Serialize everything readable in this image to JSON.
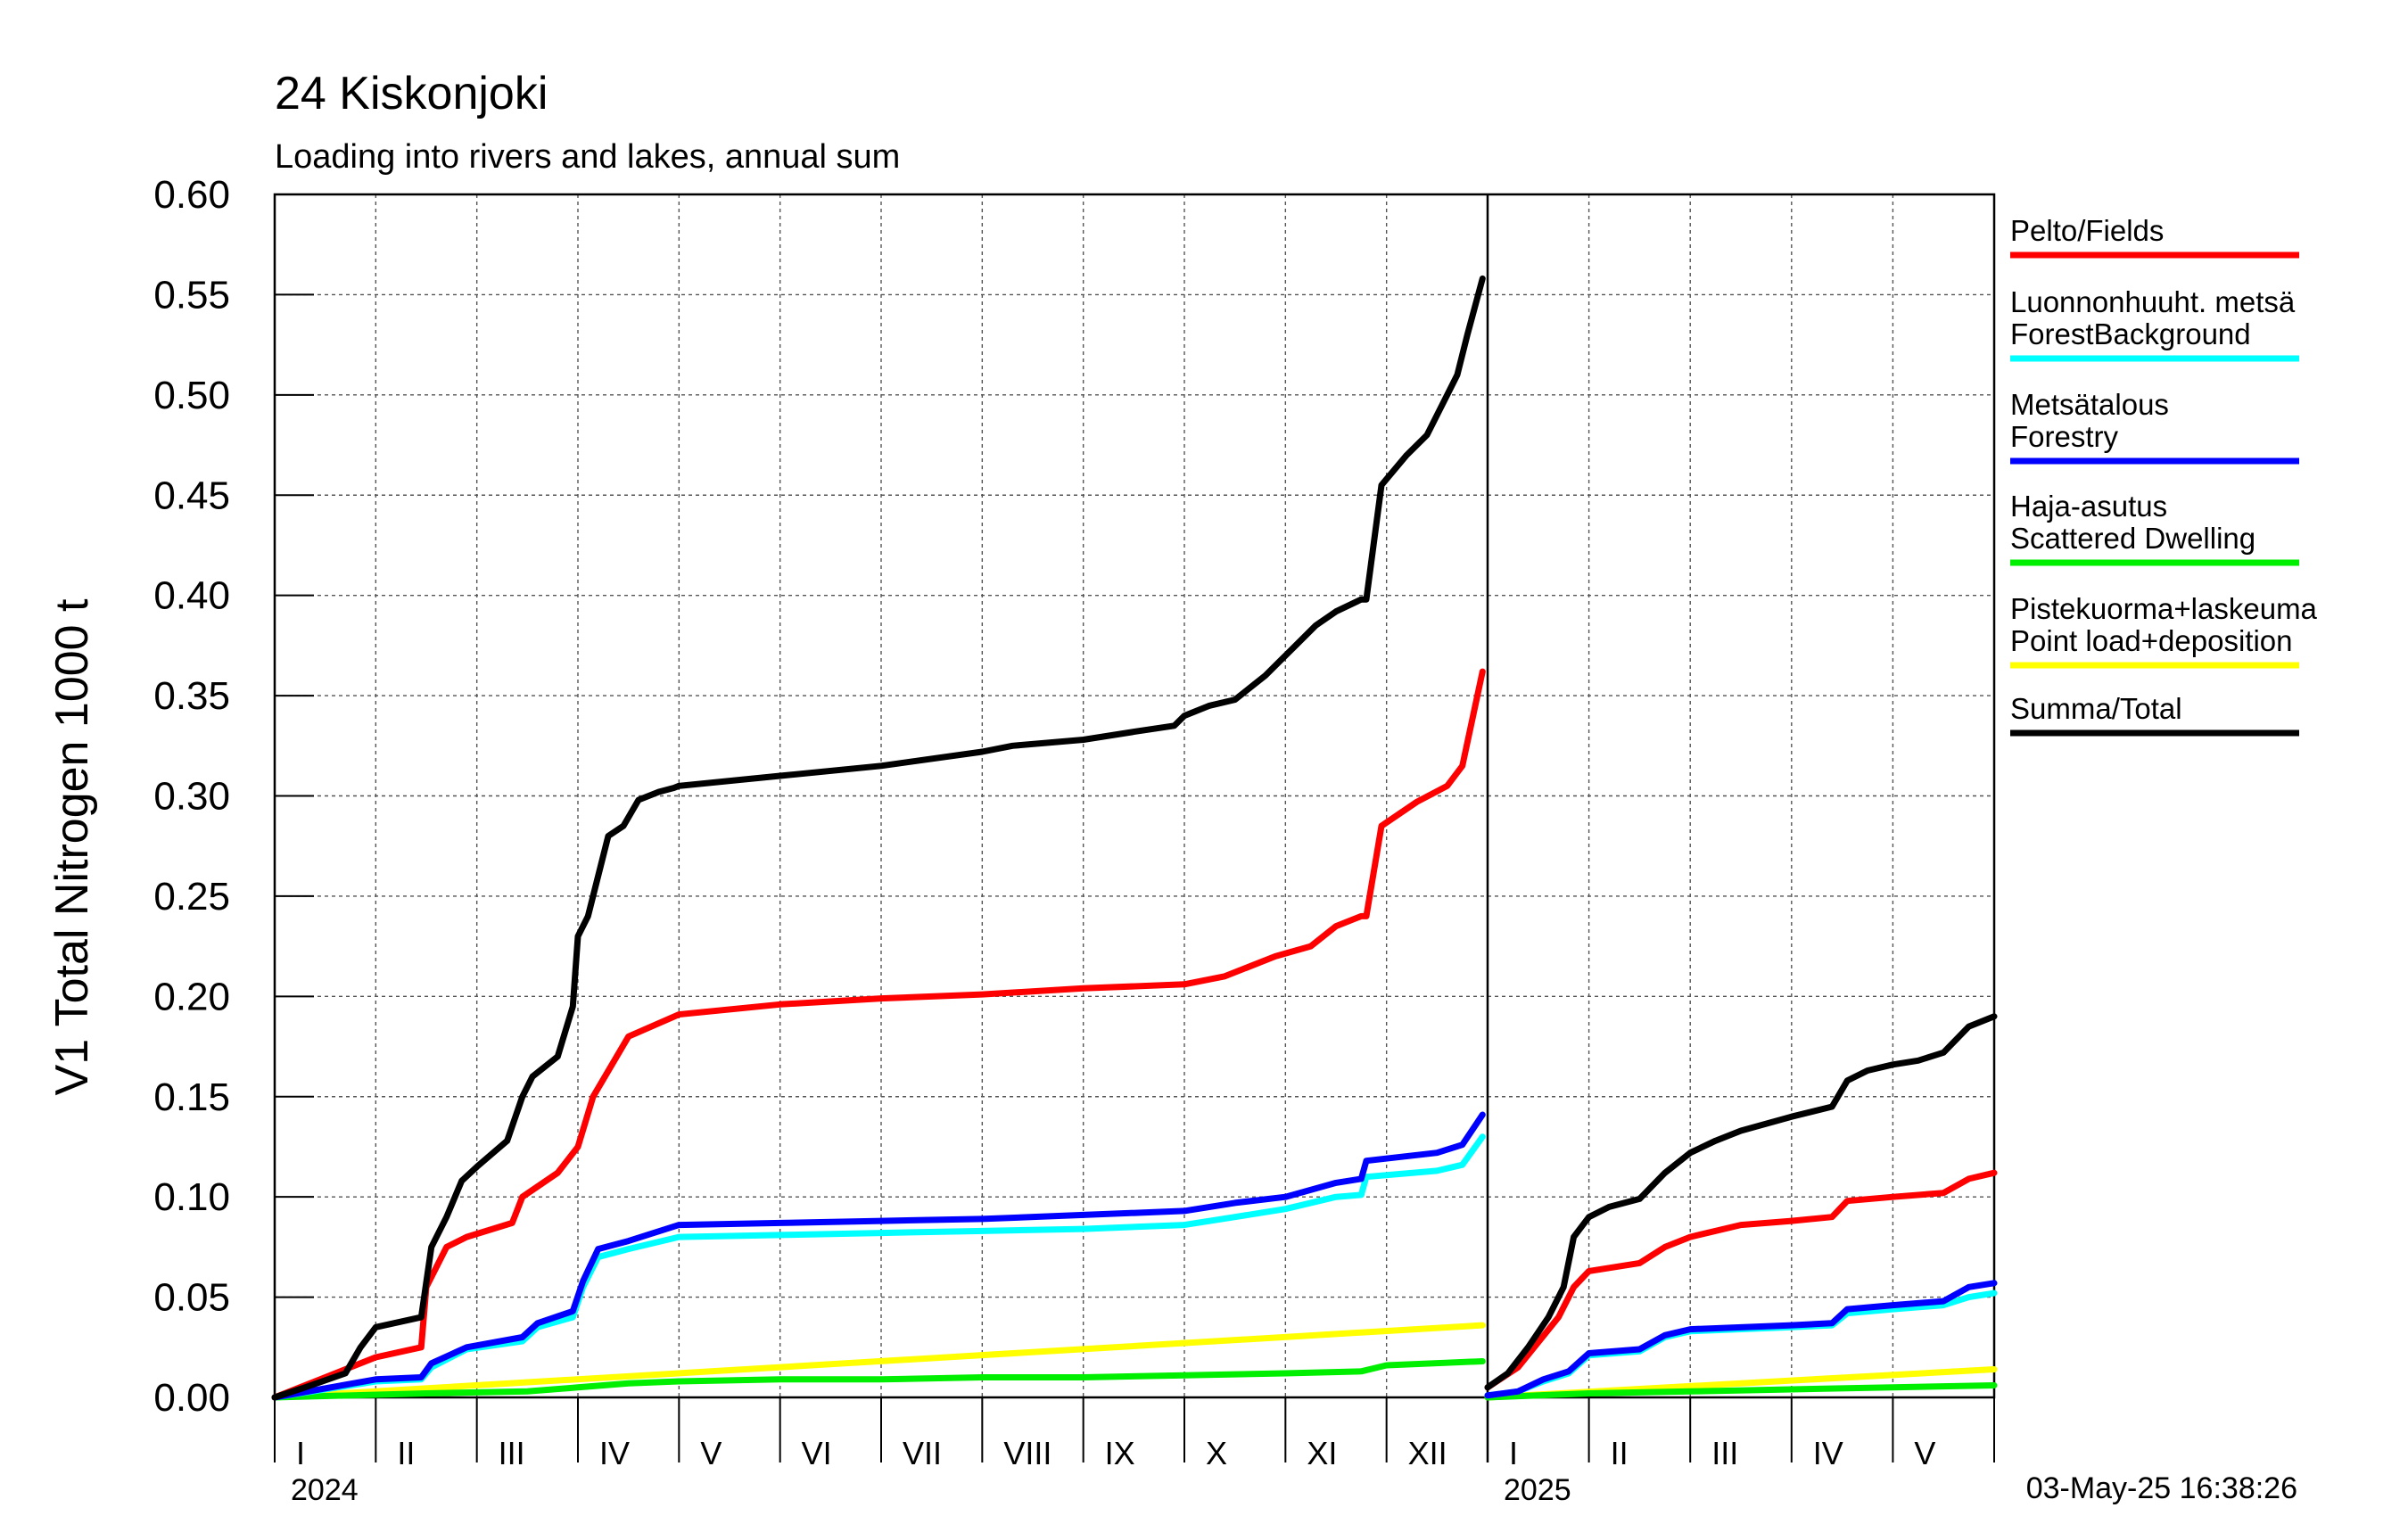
{
  "chart_data": {
    "type": "line",
    "title": "24 Kiskonjoki",
    "subtitle": "Loading into rivers and lakes, annual sum",
    "ylabel": "V1 Total Nitrogen 1000 t",
    "ylim": [
      0,
      0.6
    ],
    "yticks": [
      "0.00",
      "0.05",
      "0.10",
      "0.15",
      "0.20",
      "0.25",
      "0.30",
      "0.35",
      "0.40",
      "0.45",
      "0.50",
      "0.55",
      "0.60"
    ],
    "grid": true,
    "legend_position": "right",
    "timestamp": "03-May-25 16:38:26",
    "xaxis": {
      "panel_2024": {
        "year": "2024",
        "months": [
          "I",
          "II",
          "III",
          "IV",
          "V",
          "VI",
          "VII",
          "VIII",
          "IX",
          "X",
          "XI",
          "XII"
        ],
        "month_range": [
          0,
          12
        ]
      },
      "panel_2025": {
        "year": "2025",
        "months": [
          "I",
          "II",
          "III",
          "IV",
          "V"
        ],
        "month_range": [
          0,
          5
        ]
      }
    },
    "series": [
      {
        "name": "Pelto/Fields",
        "color": "#ff0000",
        "x_2024": [
          0,
          1,
          1.45,
          1.5,
          1.7,
          1.9,
          2.35,
          2.45,
          2.8,
          3.0,
          3.15,
          3.5,
          4.0,
          5.0,
          6.0,
          7.0,
          8.0,
          9.0,
          9.4,
          9.9,
          10.25,
          10.5,
          10.75,
          10.8,
          10.95,
          11.3,
          11.6,
          11.75,
          11.95
        ],
        "y_2024": [
          0,
          0.02,
          0.025,
          0.055,
          0.075,
          0.08,
          0.087,
          0.1,
          0.112,
          0.125,
          0.15,
          0.18,
          0.191,
          0.196,
          0.199,
          0.201,
          0.204,
          0.206,
          0.21,
          0.22,
          0.225,
          0.235,
          0.24,
          0.24,
          0.285,
          0.297,
          0.305,
          0.315,
          0.362
        ],
        "x_2025": [
          0,
          0.3,
          0.7,
          0.85,
          1.0,
          1.5,
          1.75,
          2.0,
          2.5,
          3.0,
          3.4,
          3.55,
          4.0,
          4.5,
          4.75,
          5.0
        ],
        "y_2025": [
          0.005,
          0.015,
          0.04,
          0.055,
          0.063,
          0.067,
          0.075,
          0.08,
          0.086,
          0.088,
          0.09,
          0.098,
          0.1,
          0.102,
          0.109,
          0.112
        ]
      },
      {
        "name": "Luonnonhuuht. metsä ForestBackground",
        "color": "#00ffff",
        "x_2024": [
          0,
          1,
          1.45,
          1.55,
          1.9,
          2.45,
          2.6,
          2.95,
          3.05,
          3.2,
          3.5,
          4.0,
          5.0,
          6.0,
          7.0,
          8.0,
          9.0,
          9.5,
          10.0,
          10.5,
          10.75,
          10.8,
          11.5,
          11.75,
          11.95
        ],
        "y_2024": [
          0,
          0.008,
          0.009,
          0.015,
          0.024,
          0.028,
          0.035,
          0.04,
          0.055,
          0.07,
          0.074,
          0.08,
          0.081,
          0.082,
          0.083,
          0.084,
          0.086,
          0.09,
          0.094,
          0.1,
          0.101,
          0.11,
          0.113,
          0.116,
          0.13
        ],
        "x_2025": [
          0,
          0.3,
          0.55,
          0.8,
          1.0,
          1.5,
          1.75,
          2.0,
          3.0,
          3.4,
          3.55,
          4.0,
          4.5,
          4.75,
          5.0
        ],
        "y_2025": [
          0.001,
          0.003,
          0.008,
          0.012,
          0.021,
          0.023,
          0.03,
          0.033,
          0.035,
          0.036,
          0.042,
          0.044,
          0.046,
          0.05,
          0.052
        ]
      },
      {
        "name": "Metsätalous Forestry",
        "color": "#0000ff",
        "x_2024": [
          0,
          1,
          1.45,
          1.55,
          1.9,
          2.45,
          2.6,
          2.95,
          3.05,
          3.2,
          3.5,
          4.0,
          5.0,
          6.0,
          7.0,
          8.0,
          9.0,
          9.5,
          10.0,
          10.5,
          10.75,
          10.8,
          11.5,
          11.75,
          11.95
        ],
        "y_2024": [
          0,
          0.009,
          0.01,
          0.017,
          0.025,
          0.03,
          0.037,
          0.043,
          0.058,
          0.074,
          0.078,
          0.086,
          0.087,
          0.088,
          0.089,
          0.091,
          0.093,
          0.097,
          0.1,
          0.107,
          0.109,
          0.118,
          0.122,
          0.126,
          0.141
        ],
        "x_2025": [
          0,
          0.3,
          0.55,
          0.8,
          1.0,
          1.5,
          1.75,
          2.0,
          3.0,
          3.4,
          3.55,
          4.0,
          4.5,
          4.75,
          5.0
        ],
        "y_2025": [
          0.001,
          0.003,
          0.009,
          0.013,
          0.022,
          0.024,
          0.031,
          0.034,
          0.036,
          0.037,
          0.044,
          0.046,
          0.048,
          0.055,
          0.057
        ]
      },
      {
        "name": "Haja-asutus Scattered Dwelling",
        "color": "#00ee00",
        "x_2024": [
          0,
          1.5,
          2.5,
          3.0,
          3.5,
          4.0,
          5.0,
          6.0,
          7.0,
          8.0,
          9.0,
          10.0,
          10.75,
          11.0,
          11.95
        ],
        "y_2024": [
          0,
          0.002,
          0.003,
          0.005,
          0.007,
          0.008,
          0.009,
          0.009,
          0.01,
          0.01,
          0.011,
          0.012,
          0.013,
          0.016,
          0.018
        ],
        "x_2025": [
          0,
          1.0,
          2.0,
          3.0,
          4.0,
          5.0
        ],
        "y_2025": [
          0,
          0.002,
          0.003,
          0.004,
          0.005,
          0.006
        ]
      },
      {
        "name": "Pistekuorma+laskeuma Point load+deposition",
        "color": "#ffff00",
        "x_2024": [
          0,
          11.95
        ],
        "y_2024": [
          0,
          0.036
        ],
        "x_2025": [
          0,
          5.0
        ],
        "y_2025": [
          0,
          0.014
        ]
      },
      {
        "name": "Summa/Total",
        "color": "#000000",
        "x_2024": [
          0,
          0.3,
          0.7,
          0.85,
          1.0,
          1.45,
          1.55,
          1.7,
          1.85,
          2.0,
          2.3,
          2.45,
          2.55,
          2.8,
          2.95,
          3.0,
          3.1,
          3.3,
          3.45,
          3.6,
          3.8,
          3.95,
          4.0,
          5.0,
          6.0,
          7.0,
          7.3,
          8.0,
          8.5,
          8.9,
          9.0,
          9.25,
          9.5,
          9.8,
          9.9,
          10.1,
          10.3,
          10.5,
          10.75,
          10.8,
          10.95,
          11.2,
          11.4,
          11.6,
          11.7,
          11.8,
          11.95
        ],
        "y_2024": [
          0,
          0.005,
          0.012,
          0.025,
          0.035,
          0.04,
          0.075,
          0.09,
          0.108,
          0.115,
          0.128,
          0.15,
          0.16,
          0.17,
          0.195,
          0.23,
          0.24,
          0.28,
          0.285,
          0.298,
          0.302,
          0.304,
          0.305,
          0.31,
          0.315,
          0.322,
          0.325,
          0.328,
          0.332,
          0.335,
          0.34,
          0.345,
          0.348,
          0.36,
          0.365,
          0.375,
          0.385,
          0.392,
          0.398,
          0.398,
          0.455,
          0.47,
          0.48,
          0.5,
          0.51,
          0.53,
          0.558
        ],
        "x_2025": [
          0,
          0.2,
          0.4,
          0.6,
          0.75,
          0.85,
          1.0,
          1.2,
          1.5,
          1.75,
          2.0,
          2.25,
          2.5,
          3.0,
          3.4,
          3.55,
          3.75,
          4.0,
          4.25,
          4.5,
          4.75,
          5.0
        ],
        "y_2025": [
          0.005,
          0.012,
          0.025,
          0.04,
          0.055,
          0.08,
          0.09,
          0.095,
          0.099,
          0.112,
          0.122,
          0.128,
          0.133,
          0.14,
          0.145,
          0.158,
          0.163,
          0.166,
          0.168,
          0.172,
          0.185,
          0.19
        ]
      }
    ]
  }
}
